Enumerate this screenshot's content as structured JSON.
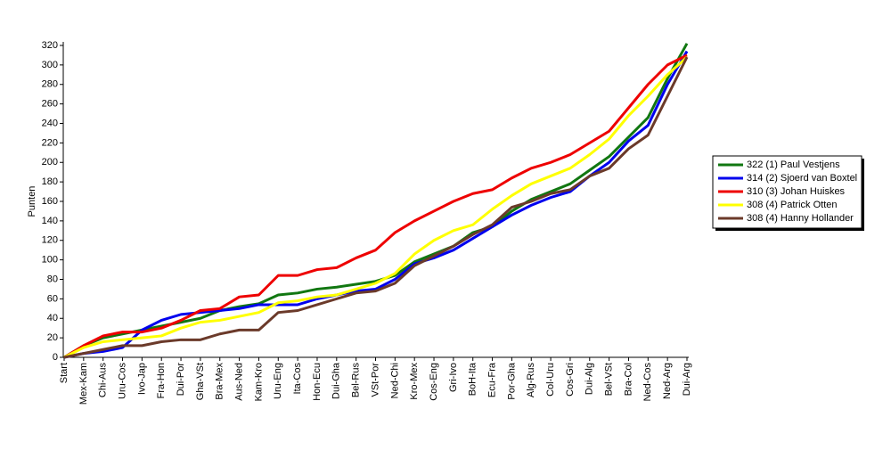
{
  "chart_data": {
    "type": "line",
    "y_label": "Punten",
    "categories": [
      "Start",
      "Mex-Kam",
      "Chi-Aus",
      "Uru-Cos",
      "Ivo-Jap",
      "Fra-Hon",
      "Dui-Por",
      "Gha-VSt",
      "Bra-Mex",
      "Aus-Ned",
      "Kam-Kro",
      "Uru-Eng",
      "Ita-Cos",
      "Hon-Ecu",
      "Dui-Gha",
      "Bel-Rus",
      "VSt-Por",
      "Ned-Chi",
      "Kro-Mex",
      "Cos-Eng",
      "Gri-Ivo",
      "BoH-Ita",
      "Ecu-Fra",
      "Por-Gha",
      "Alg-Rus",
      "Col-Uru",
      "Cos-Gri",
      "Dui-Alg",
      "Bel-VSt",
      "Bra-Col",
      "Ned-Cos",
      "Ned-Arg",
      "Dui-Arg"
    ],
    "series": [
      {
        "name": "322 (1) Paul Vestjens",
        "color": "#117711",
        "values": [
          0,
          12,
          20,
          24,
          28,
          32,
          36,
          40,
          48,
          52,
          55,
          64,
          66,
          70,
          72,
          75,
          78,
          84,
          98,
          106,
          114,
          128,
          134,
          150,
          162,
          170,
          178,
          192,
          206,
          226,
          246,
          286,
          322
        ]
      },
      {
        "name": "314 (2) Sjoerd van Boxtel",
        "color": "#0000ee",
        "values": [
          0,
          4,
          6,
          10,
          28,
          38,
          44,
          46,
          48,
          50,
          54,
          54,
          54,
          60,
          64,
          68,
          70,
          80,
          96,
          102,
          110,
          122,
          134,
          146,
          156,
          164,
          170,
          186,
          200,
          222,
          238,
          280,
          314
        ]
      },
      {
        "name": "310 (3) Johan Huiskes",
        "color": "#ee0000",
        "values": [
          0,
          12,
          22,
          26,
          26,
          30,
          38,
          48,
          50,
          62,
          64,
          84,
          84,
          90,
          92,
          102,
          110,
          128,
          140,
          150,
          160,
          168,
          172,
          184,
          194,
          200,
          208,
          220,
          232,
          256,
          280,
          300,
          310
        ]
      },
      {
        "name": "308 (4) Patrick Otten",
        "color": "#ffff00",
        "values": [
          0,
          10,
          16,
          18,
          20,
          22,
          30,
          36,
          38,
          42,
          46,
          56,
          58,
          62,
          64,
          70,
          76,
          86,
          106,
          120,
          130,
          136,
          152,
          166,
          178,
          186,
          194,
          208,
          224,
          248,
          268,
          290,
          308
        ]
      },
      {
        "name": "308 (4) Hanny Hollander",
        "color": "#6b3a2a",
        "values": [
          0,
          4,
          8,
          12,
          12,
          16,
          18,
          18,
          24,
          28,
          28,
          46,
          48,
          54,
          60,
          66,
          68,
          76,
          94,
          104,
          114,
          126,
          136,
          154,
          160,
          168,
          172,
          186,
          194,
          214,
          228,
          268,
          308
        ]
      }
    ],
    "ylim": [
      0,
      320
    ],
    "yticks": [
      0,
      20,
      40,
      60,
      80,
      100,
      120,
      140,
      160,
      180,
      200,
      220,
      240,
      260,
      280,
      300,
      320
    ],
    "legend": "right"
  }
}
